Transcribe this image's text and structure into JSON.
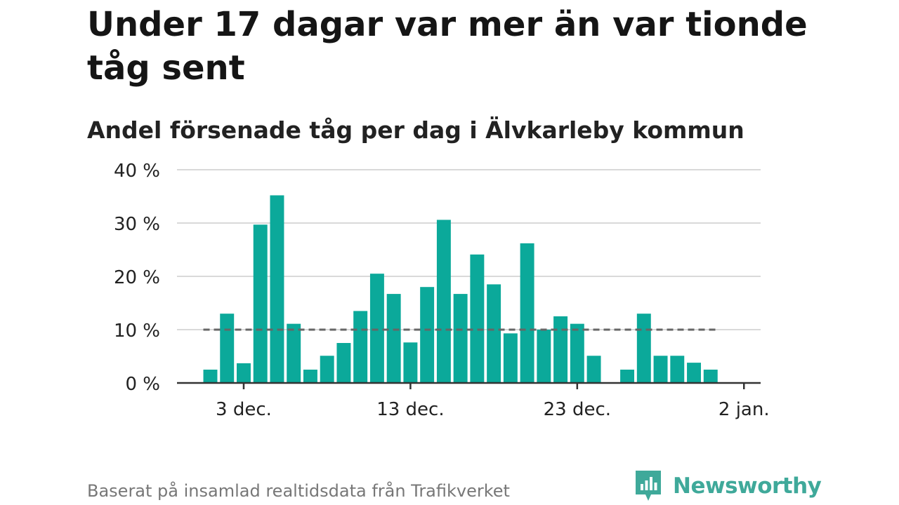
{
  "title": "Under 17 dagar var mer än var tionde tåg sent",
  "subtitle": "Andel försenade tåg per dag i Älvkarleby kommun",
  "footer": "Baserat på insamlad realtidsdata från Trafikverket",
  "brand": {
    "name": "Newsworthy",
    "icon": "newsworthy-logo-icon"
  },
  "colors": {
    "bar": "#0ba99a",
    "grid": "#d9d9d9",
    "axis": "#333333",
    "reference": "#666666"
  },
  "chart_data": {
    "type": "bar",
    "y_unit": "%",
    "ylim": [
      0,
      40
    ],
    "y_ticks": [
      0,
      10,
      20,
      30,
      40
    ],
    "y_tick_labels": [
      "0 %",
      "10 %",
      "20 %",
      "30 %",
      "40 %"
    ],
    "x_ticks": [
      "3 dec.",
      "13 dec.",
      "23 dec.",
      "2 jan."
    ],
    "x_tick_days": [
      3,
      13,
      23,
      33
    ],
    "x_domain": [
      -1,
      34
    ],
    "grid": true,
    "reference_line": {
      "value": 10,
      "style": "dashed"
    },
    "days": [
      1,
      2,
      3,
      4,
      5,
      6,
      7,
      8,
      9,
      10,
      11,
      12,
      13,
      14,
      15,
      16,
      17,
      18,
      19,
      20,
      21,
      22,
      23,
      24,
      25,
      26,
      27,
      28,
      29,
      30,
      31
    ],
    "values": [
      2.5,
      13,
      3.7,
      29.7,
      35.2,
      11.1,
      2.5,
      5.1,
      7.5,
      13.5,
      20.5,
      16.7,
      7.6,
      18,
      30.6,
      16.7,
      24.1,
      18.5,
      9.3,
      26.2,
      10,
      12.5,
      11.1,
      5.1,
      0,
      2.5,
      13,
      5.1,
      5.1,
      3.8,
      2.5
    ]
  }
}
